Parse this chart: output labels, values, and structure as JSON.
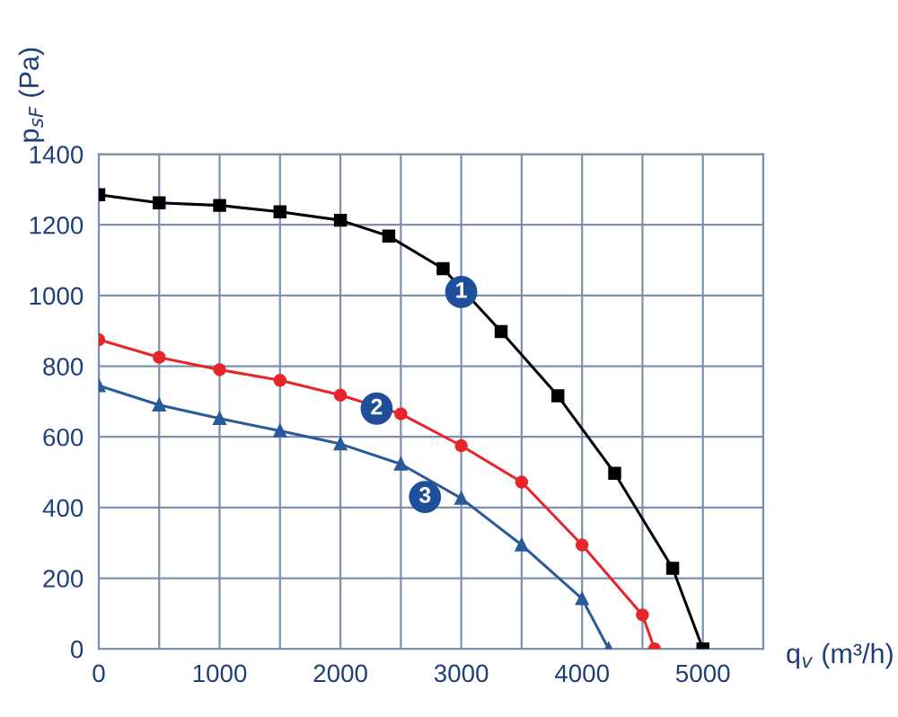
{
  "chart_data": {
    "type": "line",
    "ylabel": "p$_{sF}$ (Pa)",
    "xlabel": "q$_{v}$ (m³/h)",
    "xlim": [
      0,
      5500
    ],
    "ylim": [
      0,
      1400
    ],
    "xticks": [
      0,
      {
        "value": 500,
        "label": null
      },
      1000,
      {
        "value": 1500,
        "label": null
      },
      2000,
      {
        "value": 2500,
        "label": null
      },
      3000,
      {
        "value": 3500,
        "label": null
      },
      4000,
      {
        "value": 4500,
        "label": null
      },
      5000,
      {
        "value": 5500,
        "label": null
      }
    ],
    "yticks": [
      0,
      200,
      400,
      600,
      800,
      1000,
      1200,
      1400
    ],
    "grid": true,
    "series": [
      {
        "color": "#000000",
        "marker": "square",
        "x": [
          0,
          500,
          1000,
          1500,
          2000,
          2400,
          2850,
          3330,
          3800,
          4270,
          4750,
          5000
        ],
        "values": [
          1285,
          1262,
          1255,
          1237,
          1213,
          1168,
          1076,
          898,
          716,
          497,
          228,
          0
        ]
      },
      {
        "color": "#e8252a",
        "marker": "circle",
        "x": [
          0,
          500,
          1000,
          1500,
          2000,
          2500,
          3000,
          3500,
          4000,
          4500,
          4600
        ],
        "values": [
          875,
          825,
          790,
          760,
          718,
          665,
          575,
          472,
          294,
          96,
          0
        ]
      },
      {
        "color": "#2a5a9a",
        "marker": "triangle",
        "x": [
          0,
          500,
          1000,
          1500,
          2000,
          2500,
          3000,
          3500,
          4000,
          4220
        ],
        "values": [
          745,
          690,
          652,
          617,
          580,
          523,
          426,
          294,
          142,
          0
        ]
      }
    ],
    "annotations": [
      {
        "text": "1",
        "x": 3000,
        "y": 1010
      },
      {
        "text": "2",
        "x": 2300,
        "y": 680
      },
      {
        "text": "3",
        "x": 2700,
        "y": 430
      }
    ]
  }
}
